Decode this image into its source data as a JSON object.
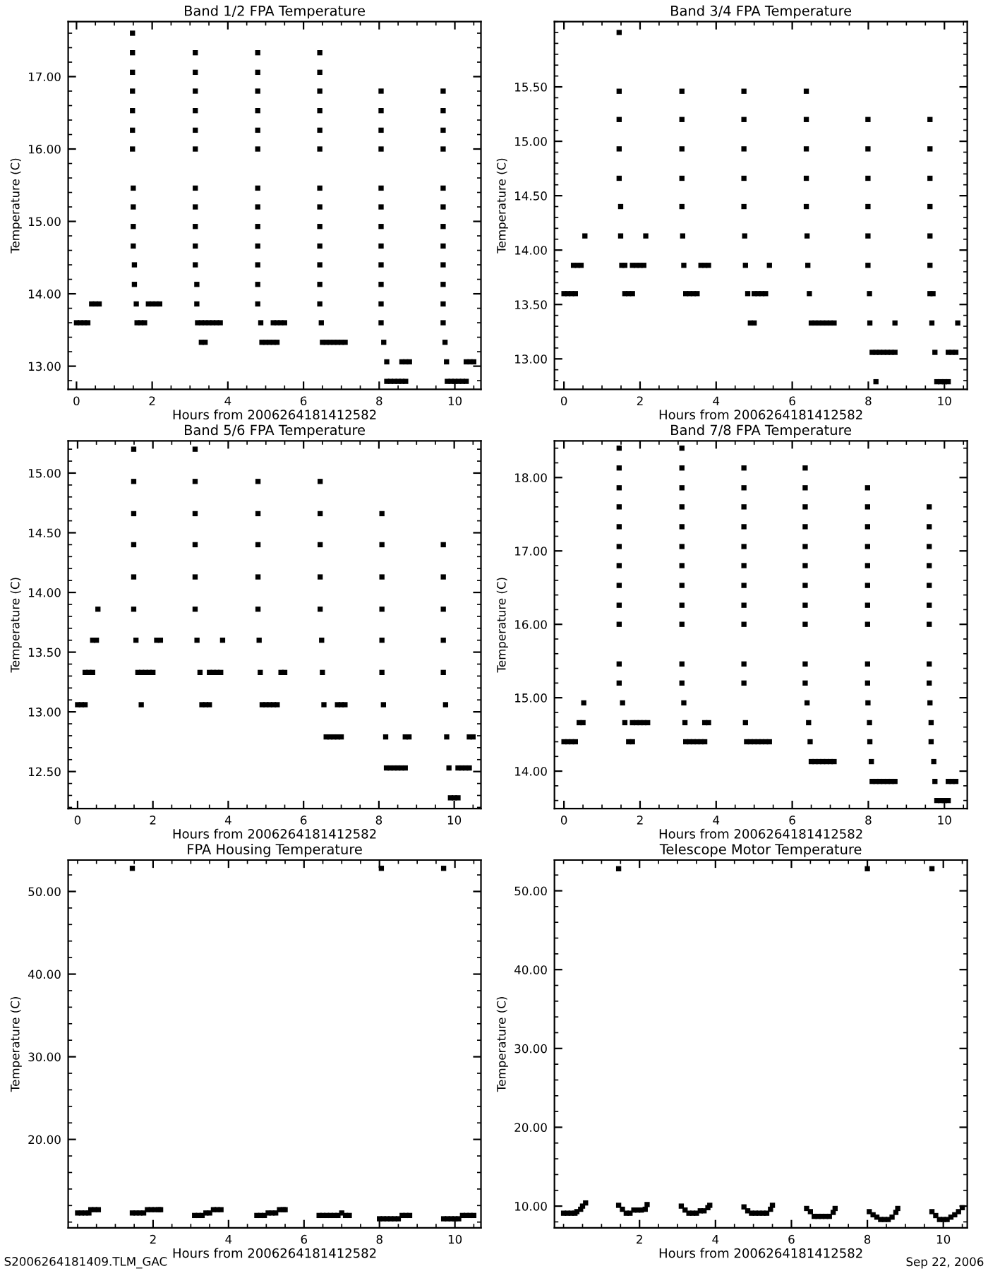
{
  "chart_data": [
    {
      "type": "scatter",
      "title": "Band 1/2 FPA Temperature",
      "xlabel": "Hours from 2006264181412582",
      "ylabel": "Temperature (C)",
      "marker": "square",
      "xlim": [
        -0.22,
        10.69
      ],
      "ylim": [
        12.68,
        17.76
      ],
      "xticks": [
        0,
        2,
        4,
        6,
        8,
        10
      ],
      "yticks": [
        {
          "value": 13,
          "label": "13.00"
        },
        {
          "value": 14,
          "label": "14.00"
        },
        {
          "value": 15,
          "label": "15.00"
        },
        {
          "value": 16,
          "label": "16.00"
        },
        {
          "value": 17,
          "label": "17.00"
        }
      ],
      "series": [
        {
          "color": "#000000",
          "x": [
            0,
            0.1,
            0.2,
            0.3,
            0.4,
            0.5,
            0.6
          ],
          "values": [
            13.6,
            13.6,
            13.6,
            13.6,
            13.86,
            13.86,
            13.86
          ]
        },
        {
          "color": "#000000",
          "x": [
            1.48,
            1.48,
            1.48,
            1.48,
            1.48,
            1.48,
            1.48,
            1.5,
            1.5,
            1.5,
            1.5,
            1.53,
            1.53,
            1.58,
            1.6,
            1.7,
            1.8,
            1.9,
            2.0,
            2.1,
            2.2
          ],
          "values": [
            17.6,
            17.33,
            17.06,
            16.8,
            16.53,
            16.26,
            16.0,
            15.46,
            15.2,
            14.93,
            14.66,
            14.4,
            14.13,
            13.86,
            13.6,
            13.6,
            13.6,
            13.86,
            13.86,
            13.86,
            13.86
          ]
        },
        {
          "color": "#000000",
          "x": [
            3.14,
            3.14,
            3.14,
            3.14,
            3.14,
            3.14,
            3.14,
            3.14,
            3.14,
            3.14,
            3.14,
            3.18,
            3.18,
            3.2,
            3.3,
            3.4,
            3.5,
            3.6,
            3.7,
            3.8,
            3.3,
            3.4
          ],
          "values": [
            17.33,
            17.06,
            16.8,
            16.53,
            16.26,
            16.0,
            15.46,
            15.2,
            14.93,
            14.66,
            14.4,
            14.13,
            13.86,
            13.6,
            13.6,
            13.6,
            13.6,
            13.6,
            13.6,
            13.6,
            13.33,
            13.33
          ]
        },
        {
          "color": "#000000",
          "x": [
            4.79,
            4.79,
            4.79,
            4.79,
            4.79,
            4.79,
            4.79,
            4.79,
            4.79,
            4.79,
            4.79,
            4.79,
            4.79,
            4.87,
            4.9,
            5.0,
            5.1,
            5.2,
            5.3,
            5.2,
            5.3,
            5.4,
            5.5
          ],
          "values": [
            17.33,
            17.06,
            16.8,
            16.53,
            16.26,
            16.0,
            15.46,
            15.2,
            14.93,
            14.66,
            14.4,
            14.13,
            13.86,
            13.6,
            13.33,
            13.33,
            13.33,
            13.33,
            13.33,
            13.6,
            13.6,
            13.6,
            13.6
          ]
        },
        {
          "color": "#000000",
          "x": [
            6.43,
            6.43,
            6.43,
            6.43,
            6.43,
            6.43,
            6.43,
            6.43,
            6.43,
            6.43,
            6.43,
            6.43,
            6.43,
            6.47,
            6.5,
            6.6,
            6.7,
            6.8,
            6.9,
            7.0,
            7.1
          ],
          "values": [
            17.33,
            17.06,
            16.8,
            16.53,
            16.26,
            16.0,
            15.46,
            15.2,
            14.93,
            14.66,
            14.4,
            14.13,
            13.86,
            13.6,
            13.33,
            13.33,
            13.33,
            13.33,
            13.33,
            13.33,
            13.33
          ]
        },
        {
          "color": "#000000",
          "x": [
            8.05,
            8.05,
            8.05,
            8.05,
            8.05,
            8.05,
            8.05,
            8.05,
            8.05,
            8.05,
            8.05,
            8.05,
            8.12,
            8.2,
            8.2,
            8.3,
            8.4,
            8.5,
            8.6,
            8.7,
            8.6,
            8.7,
            8.8
          ],
          "values": [
            16.8,
            16.53,
            16.26,
            16.0,
            15.46,
            15.2,
            14.93,
            14.66,
            14.4,
            14.13,
            13.86,
            13.6,
            13.33,
            13.06,
            12.79,
            12.79,
            12.79,
            12.79,
            12.79,
            12.79,
            13.06,
            13.06,
            13.06
          ]
        },
        {
          "color": "#000000",
          "x": [
            9.69,
            9.69,
            9.69,
            9.69,
            9.69,
            9.69,
            9.69,
            9.69,
            9.69,
            9.69,
            9.69,
            9.69,
            9.74,
            9.78,
            9.8,
            9.9,
            10.0,
            10.1,
            10.2,
            10.3,
            10.3,
            10.4,
            10.5
          ],
          "values": [
            16.8,
            16.53,
            16.26,
            16.0,
            15.46,
            15.2,
            14.93,
            14.66,
            14.4,
            14.13,
            13.86,
            13.6,
            13.33,
            13.06,
            12.79,
            12.79,
            12.79,
            12.79,
            12.79,
            12.79,
            13.06,
            13.06,
            13.06
          ]
        }
      ]
    },
    {
      "type": "scatter",
      "title": "Band 3/4 FPA Temperature",
      "xlabel": "Hours from 2006264181412582",
      "ylabel": "Temperature (C)",
      "marker": "square",
      "xlim": [
        -0.25,
        10.6
      ],
      "ylim": [
        12.72,
        16.1
      ],
      "xticks": [
        0,
        2,
        4,
        6,
        8,
        10
      ],
      "yticks": [
        {
          "value": 13,
          "label": "13.00"
        },
        {
          "value": 13.5,
          "label": "13.50"
        },
        {
          "value": 14,
          "label": "14.00"
        },
        {
          "value": 14.5,
          "label": "14.50"
        },
        {
          "value": 15,
          "label": "15.00"
        },
        {
          "value": 15.5,
          "label": "15.50"
        }
      ],
      "series": [
        {
          "color": "#000000",
          "x": [
            0,
            0.1,
            0.2,
            0.3,
            0.25,
            0.35,
            0.45,
            0.55
          ],
          "values": [
            13.6,
            13.6,
            13.6,
            13.6,
            13.86,
            13.86,
            13.86,
            14.13
          ]
        },
        {
          "color": "#000000",
          "x": [
            1.45,
            1.45,
            1.45,
            1.45,
            1.45,
            1.49,
            1.49,
            1.52,
            1.6,
            1.6,
            1.7,
            1.8,
            1.8,
            1.9,
            2.0,
            2.1,
            2.15
          ],
          "values": [
            16.0,
            15.46,
            15.2,
            14.93,
            14.66,
            14.4,
            14.13,
            13.86,
            13.86,
            13.6,
            13.6,
            13.6,
            13.86,
            13.86,
            13.86,
            13.86,
            14.13
          ]
        },
        {
          "color": "#000000",
          "x": [
            3.1,
            3.1,
            3.1,
            3.1,
            3.1,
            3.12,
            3.15,
            3.2,
            3.3,
            3.4,
            3.5,
            3.6,
            3.7,
            3.8
          ],
          "values": [
            15.46,
            15.2,
            14.93,
            14.66,
            14.4,
            14.13,
            13.86,
            13.6,
            13.6,
            13.6,
            13.6,
            13.86,
            13.86,
            13.86
          ]
        },
        {
          "color": "#000000",
          "x": [
            4.73,
            4.73,
            4.73,
            4.73,
            4.73,
            4.75,
            4.77,
            4.83,
            4.9,
            5.0,
            5.0,
            5.1,
            5.2,
            5.3,
            5.4
          ],
          "values": [
            15.46,
            15.2,
            14.93,
            14.66,
            14.4,
            14.13,
            13.86,
            13.6,
            13.33,
            13.33,
            13.6,
            13.6,
            13.6,
            13.6,
            13.86
          ]
        },
        {
          "color": "#000000",
          "x": [
            6.37,
            6.37,
            6.37,
            6.37,
            6.37,
            6.39,
            6.41,
            6.45,
            6.5,
            6.6,
            6.7,
            6.8,
            6.9,
            7.0,
            7.1
          ],
          "values": [
            15.46,
            15.2,
            14.93,
            14.66,
            14.4,
            14.13,
            13.86,
            13.6,
            13.33,
            13.33,
            13.33,
            13.33,
            13.33,
            13.33,
            13.33
          ]
        },
        {
          "color": "#000000",
          "x": [
            7.99,
            7.99,
            7.99,
            7.99,
            7.99,
            7.99,
            8.03,
            8.04,
            8.1,
            8.2,
            8.3,
            8.4,
            8.5,
            8.6,
            8.7,
            8.2,
            8.7
          ],
          "values": [
            15.2,
            14.93,
            14.66,
            14.4,
            14.13,
            13.86,
            13.6,
            13.33,
            13.06,
            13.06,
            13.06,
            13.06,
            13.06,
            13.06,
            13.06,
            12.79,
            13.33
          ]
        },
        {
          "color": "#000000",
          "x": [
            9.62,
            9.62,
            9.62,
            9.62,
            9.62,
            9.62,
            9.62,
            9.7,
            9.67,
            9.75,
            9.8,
            9.9,
            10.0,
            10.1,
            10.1,
            10.2,
            10.3,
            10.35
          ],
          "values": [
            15.2,
            14.93,
            14.66,
            14.4,
            14.13,
            13.86,
            13.6,
            13.6,
            13.33,
            13.06,
            12.79,
            12.79,
            12.79,
            12.79,
            13.06,
            13.06,
            13.06,
            13.33
          ]
        }
      ]
    },
    {
      "type": "scatter",
      "title": "Band 5/6 FPA Temperature",
      "xlabel": "Hours from 2006264181412582",
      "ylabel": "Temperature (C)",
      "marker": "square",
      "xlim": [
        -0.25,
        10.71
      ],
      "ylim": [
        12.19,
        15.27
      ],
      "xticks": [
        0,
        2,
        4,
        6,
        8,
        10
      ],
      "yticks": [
        {
          "value": 12.5,
          "label": "12.50"
        },
        {
          "value": 13,
          "label": "13.00"
        },
        {
          "value": 13.5,
          "label": "13.50"
        },
        {
          "value": 14,
          "label": "14.00"
        },
        {
          "value": 14.5,
          "label": "14.50"
        },
        {
          "value": 15,
          "label": "15.00"
        }
      ],
      "series": [
        {
          "color": "#000000",
          "x": [
            0,
            0.1,
            0.2,
            0.2,
            0.3,
            0.4,
            0.4,
            0.5,
            0.54
          ],
          "values": [
            13.06,
            13.06,
            13.06,
            13.33,
            13.33,
            13.33,
            13.6,
            13.6,
            13.86
          ]
        },
        {
          "color": "#000000",
          "x": [
            1.49,
            1.49,
            1.49,
            1.49,
            1.49,
            1.49,
            1.55,
            1.6,
            1.7,
            1.8,
            1.9,
            2.0,
            1.69,
            2.1,
            2.2
          ],
          "values": [
            15.2,
            14.93,
            14.66,
            14.4,
            14.13,
            13.86,
            13.6,
            13.33,
            13.33,
            13.33,
            13.33,
            13.33,
            13.06,
            13.6,
            13.6
          ]
        },
        {
          "color": "#000000",
          "x": [
            3.12,
            3.12,
            3.12,
            3.12,
            3.12,
            3.12,
            3.17,
            3.25,
            3.3,
            3.4,
            3.5,
            3.5,
            3.6,
            3.7,
            3.8,
            3.85
          ],
          "values": [
            15.2,
            14.93,
            14.66,
            14.4,
            14.13,
            13.86,
            13.6,
            13.33,
            13.06,
            13.06,
            13.06,
            13.33,
            13.33,
            13.33,
            13.33,
            13.6
          ]
        },
        {
          "color": "#000000",
          "x": [
            4.79,
            4.79,
            4.79,
            4.79,
            4.79,
            4.82,
            4.85,
            4.9,
            5.0,
            5.1,
            5.2,
            5.3,
            5.4,
            5.5
          ],
          "values": [
            14.93,
            14.66,
            14.4,
            14.13,
            13.86,
            13.6,
            13.33,
            13.06,
            13.06,
            13.06,
            13.06,
            13.06,
            13.33,
            13.33
          ]
        },
        {
          "color": "#000000",
          "x": [
            6.44,
            6.44,
            6.44,
            6.44,
            6.44,
            6.48,
            6.5,
            6.54,
            6.6,
            6.7,
            6.8,
            6.9,
            7.0,
            6.9,
            7.0,
            7.1
          ],
          "values": [
            14.93,
            14.66,
            14.4,
            14.13,
            13.86,
            13.6,
            13.33,
            13.06,
            12.79,
            12.79,
            12.79,
            12.79,
            12.79,
            13.06,
            13.06,
            13.06
          ]
        },
        {
          "color": "#000000",
          "x": [
            8.08,
            8.08,
            8.08,
            8.08,
            8.08,
            8.08,
            8.12,
            8.18,
            8.2,
            8.3,
            8.4,
            8.5,
            8.6,
            8.7,
            8.7,
            8.8
          ],
          "values": [
            14.66,
            14.4,
            14.13,
            13.86,
            13.6,
            13.33,
            13.06,
            12.79,
            12.53,
            12.53,
            12.53,
            12.53,
            12.53,
            12.53,
            12.79,
            12.79
          ]
        },
        {
          "color": "#000000",
          "x": [
            9.71,
            9.71,
            9.71,
            9.71,
            9.71,
            9.77,
            9.8,
            9.86,
            9.9,
            10.0,
            10.1,
            10.1,
            10.2,
            10.3,
            10.4,
            10.4,
            10.5
          ],
          "values": [
            14.4,
            14.13,
            13.86,
            13.6,
            13.33,
            13.06,
            12.79,
            12.53,
            12.28,
            12.28,
            12.28,
            12.53,
            12.53,
            12.53,
            12.53,
            12.79,
            12.79
          ]
        }
      ]
    },
    {
      "type": "scatter",
      "title": "Band 7/8 FPA Temperature",
      "xlabel": "Hours from 2006264181412582",
      "ylabel": "Temperature (C)",
      "marker": "square",
      "xlim": [
        -0.25,
        10.6
      ],
      "ylim": [
        13.49,
        18.5
      ],
      "xticks": [
        0,
        2,
        4,
        6,
        8,
        10
      ],
      "yticks": [
        {
          "value": 14,
          "label": "14.00"
        },
        {
          "value": 15,
          "label": "15.00"
        },
        {
          "value": 16,
          "label": "16.00"
        },
        {
          "value": 17,
          "label": "17.00"
        },
        {
          "value": 18,
          "label": "18.00"
        }
      ],
      "series": [
        {
          "color": "#000000",
          "x": [
            0,
            0.1,
            0.2,
            0.3,
            0.4,
            0.5,
            0.52
          ],
          "values": [
            14.4,
            14.4,
            14.4,
            14.4,
            14.66,
            14.66,
            14.93
          ]
        },
        {
          "color": "#000000",
          "x": [
            1.45,
            1.45,
            1.45,
            1.45,
            1.45,
            1.45,
            1.45,
            1.45,
            1.45,
            1.45,
            1.45,
            1.45,
            1.54,
            1.6,
            1.7,
            1.8,
            1.8,
            1.9,
            2.0,
            2.1,
            2.2
          ],
          "values": [
            18.4,
            18.13,
            17.86,
            17.6,
            17.33,
            17.06,
            16.8,
            16.53,
            16.26,
            16.0,
            15.46,
            15.2,
            14.93,
            14.66,
            14.4,
            14.4,
            14.66,
            14.66,
            14.66,
            14.66,
            14.66
          ]
        },
        {
          "color": "#000000",
          "x": [
            3.1,
            3.1,
            3.1,
            3.1,
            3.1,
            3.1,
            3.1,
            3.1,
            3.1,
            3.1,
            3.1,
            3.1,
            3.15,
            3.18,
            3.2,
            3.3,
            3.4,
            3.5,
            3.6,
            3.7,
            3.7,
            3.8
          ],
          "values": [
            18.4,
            18.13,
            17.86,
            17.6,
            17.33,
            17.06,
            16.8,
            16.53,
            16.26,
            16.0,
            15.46,
            15.2,
            14.93,
            14.66,
            14.4,
            14.4,
            14.4,
            14.4,
            14.4,
            14.4,
            14.66,
            14.66
          ]
        },
        {
          "color": "#000000",
          "x": [
            4.73,
            4.73,
            4.73,
            4.73,
            4.73,
            4.73,
            4.73,
            4.73,
            4.73,
            4.73,
            4.73,
            4.77,
            4.8,
            4.9,
            5.0,
            5.1,
            5.2,
            5.3,
            5.4
          ],
          "values": [
            18.13,
            17.86,
            17.6,
            17.33,
            17.06,
            16.8,
            16.53,
            16.26,
            16.0,
            15.46,
            15.2,
            14.66,
            14.4,
            14.4,
            14.4,
            14.4,
            14.4,
            14.4,
            14.4
          ]
        },
        {
          "color": "#000000",
          "x": [
            6.34,
            6.34,
            6.34,
            6.34,
            6.34,
            6.34,
            6.34,
            6.34,
            6.34,
            6.34,
            6.34,
            6.39,
            6.43,
            6.47,
            6.5,
            6.6,
            6.7,
            6.8,
            6.9,
            7.0,
            7.1
          ],
          "values": [
            18.13,
            17.86,
            17.6,
            17.33,
            17.06,
            16.8,
            16.53,
            16.26,
            16.0,
            15.46,
            15.2,
            14.93,
            14.66,
            14.4,
            14.13,
            14.13,
            14.13,
            14.13,
            14.13,
            14.13,
            14.13
          ]
        },
        {
          "color": "#000000",
          "x": [
            7.98,
            7.98,
            7.98,
            7.98,
            7.98,
            7.98,
            7.98,
            7.98,
            7.98,
            7.98,
            7.99,
            8.03,
            8.04,
            8.08,
            8.1,
            8.2,
            8.3,
            8.4,
            8.5,
            8.6,
            8.7
          ],
          "values": [
            17.86,
            17.6,
            17.33,
            17.06,
            16.8,
            16.53,
            16.26,
            16.0,
            15.46,
            15.2,
            14.93,
            14.66,
            14.4,
            14.13,
            13.86,
            13.86,
            13.86,
            13.86,
            13.86,
            13.86,
            13.86
          ]
        },
        {
          "color": "#000000",
          "x": [
            9.6,
            9.6,
            9.6,
            9.6,
            9.6,
            9.6,
            9.6,
            9.6,
            9.6,
            9.62,
            9.65,
            9.65,
            9.72,
            9.75,
            9.8,
            9.9,
            10.0,
            10.1,
            10.1,
            10.2,
            10.3
          ],
          "values": [
            17.6,
            17.33,
            17.06,
            16.8,
            16.53,
            16.26,
            16.0,
            15.46,
            15.2,
            14.93,
            14.66,
            14.4,
            14.13,
            13.86,
            13.6,
            13.6,
            13.6,
            13.6,
            13.86,
            13.86,
            13.86
          ]
        }
      ]
    },
    {
      "type": "scatter",
      "title": "FPA Housing Temperature",
      "xlabel": "Hours from 2006264181412582",
      "ylabel": "Temperature (C)",
      "marker": "square",
      "xlim": [
        -0.25,
        10.69
      ],
      "ylim": [
        9.31,
        53.8
      ],
      "xticks": [
        2,
        4,
        6,
        8,
        10
      ],
      "yticks": [
        {
          "value": 20,
          "label": "20.00"
        },
        {
          "value": 30,
          "label": "30.00"
        },
        {
          "value": 40,
          "label": "40.00"
        },
        {
          "value": 50,
          "label": "50.00"
        }
      ],
      "annotations": [
        "S2006264181409.TLM_GAC"
      ],
      "series": [
        {
          "color": "#000000",
          "x": [
            0,
            0.1,
            0.2,
            0.3,
            0.35,
            0.45,
            0.55
          ],
          "values": [
            11.1,
            11.1,
            11.1,
            11.1,
            11.5,
            11.5,
            11.5
          ]
        },
        {
          "color": "#000000",
          "x": [
            1.45,
            1.45,
            1.55,
            1.65,
            1.75,
            1.85,
            1.95,
            2.05,
            2.15,
            2.2
          ],
          "values": [
            52.8,
            11.1,
            11.1,
            11.1,
            11.1,
            11.5,
            11.5,
            11.5,
            11.5,
            11.5
          ]
        },
        {
          "color": "#000000",
          "x": [
            3.1,
            3.2,
            3.3,
            3.4,
            3.5,
            3.6,
            3.7,
            3.8
          ],
          "values": [
            10.8,
            10.8,
            10.8,
            11.1,
            11.1,
            11.5,
            11.5,
            11.5
          ]
        },
        {
          "color": "#000000",
          "x": [
            4.75,
            4.85,
            4.95,
            5.05,
            5.15,
            5.25,
            5.35,
            5.45,
            5.5
          ],
          "values": [
            10.8,
            10.8,
            10.8,
            11.1,
            11.1,
            11.1,
            11.5,
            11.5,
            11.5
          ]
        },
        {
          "color": "#000000",
          "x": [
            6.4,
            6.5,
            6.6,
            6.7,
            6.8,
            6.9,
            7.1,
            7.2,
            7.0
          ],
          "values": [
            10.8,
            10.8,
            10.8,
            10.8,
            10.8,
            10.8,
            10.8,
            10.8,
            11.1
          ]
        },
        {
          "color": "#000000",
          "x": [
            8.05,
            8.0,
            8.1,
            8.2,
            8.3,
            8.4,
            8.5,
            8.6,
            8.7,
            8.8
          ],
          "values": [
            52.8,
            10.4,
            10.4,
            10.4,
            10.4,
            10.4,
            10.4,
            10.8,
            10.8,
            10.8
          ]
        },
        {
          "color": "#000000",
          "x": [
            9.7,
            9.7,
            9.8,
            9.9,
            10.0,
            10.1,
            10.2,
            10.3,
            10.4,
            10.5
          ],
          "values": [
            52.8,
            10.4,
            10.4,
            10.4,
            10.4,
            10.4,
            10.8,
            10.8,
            10.8,
            10.8
          ]
        }
      ]
    },
    {
      "type": "scatter",
      "title": "Telescope Motor Temperature",
      "xlabel": "Hours from 2006264181412582",
      "ylabel": "Temperature (C)",
      "marker": "square",
      "xlim": [
        -0.24,
        10.63
      ],
      "ylim": [
        7.25,
        53.9
      ],
      "xticks": [
        2,
        4,
        6,
        8,
        10
      ],
      "yticks": [
        {
          "value": 10,
          "label": "10.00"
        },
        {
          "value": 20,
          "label": "20.00"
        },
        {
          "value": 30,
          "label": "30.00"
        },
        {
          "value": 40,
          "label": "40.00"
        },
        {
          "value": 50,
          "label": "50.00"
        }
      ],
      "annotations": [
        "Sep 22, 2006"
      ],
      "series": [
        {
          "color": "#000000",
          "x": [
            0,
            0.1,
            0.2,
            0.3,
            0.35,
            0.45,
            0.5,
            0.58
          ],
          "values": [
            9.1,
            9.1,
            9.1,
            9.1,
            9.3,
            9.6,
            10.0,
            10.4
          ]
        },
        {
          "color": "#000000",
          "x": [
            1.45,
            1.45,
            1.55,
            1.65,
            1.75,
            1.85,
            1.95,
            2.05,
            2.15,
            2.2
          ],
          "values": [
            52.8,
            10.1,
            9.6,
            9.1,
            9.1,
            9.5,
            9.5,
            9.5,
            9.6,
            10.2
          ]
        },
        {
          "color": "#000000",
          "x": [
            3.1,
            3.2,
            3.3,
            3.4,
            3.5,
            3.6,
            3.7,
            3.8,
            3.85
          ],
          "values": [
            10.0,
            9.5,
            9.1,
            9.1,
            9.1,
            9.4,
            9.4,
            9.8,
            10.1
          ]
        },
        {
          "color": "#000000",
          "x": [
            4.75,
            4.85,
            4.95,
            5.05,
            5.15,
            5.25,
            5.35,
            5.45,
            5.5
          ],
          "values": [
            9.9,
            9.4,
            9.1,
            9.1,
            9.1,
            9.1,
            9.1,
            9.6,
            10.1
          ]
        },
        {
          "color": "#000000",
          "x": [
            6.4,
            6.5,
            6.6,
            6.7,
            6.8,
            6.9,
            7.0,
            7.1,
            7.15
          ],
          "values": [
            9.7,
            9.3,
            8.7,
            8.7,
            8.7,
            8.7,
            8.7,
            9.2,
            9.7
          ]
        },
        {
          "color": "#000000",
          "x": [
            8.0,
            8.05,
            8.15,
            8.25,
            8.35,
            8.45,
            8.55,
            8.65,
            8.75,
            8.8
          ],
          "values": [
            52.8,
            9.3,
            8.9,
            8.6,
            8.3,
            8.3,
            8.3,
            8.6,
            9.2,
            9.7
          ]
        },
        {
          "color": "#000000",
          "x": [
            9.7,
            9.7,
            9.8,
            9.9,
            10.0,
            10.1,
            10.2,
            10.3,
            10.4,
            10.5
          ],
          "values": [
            52.8,
            9.3,
            8.8,
            8.3,
            8.3,
            8.3,
            8.6,
            8.9,
            9.3,
            9.8
          ]
        }
      ]
    }
  ]
}
